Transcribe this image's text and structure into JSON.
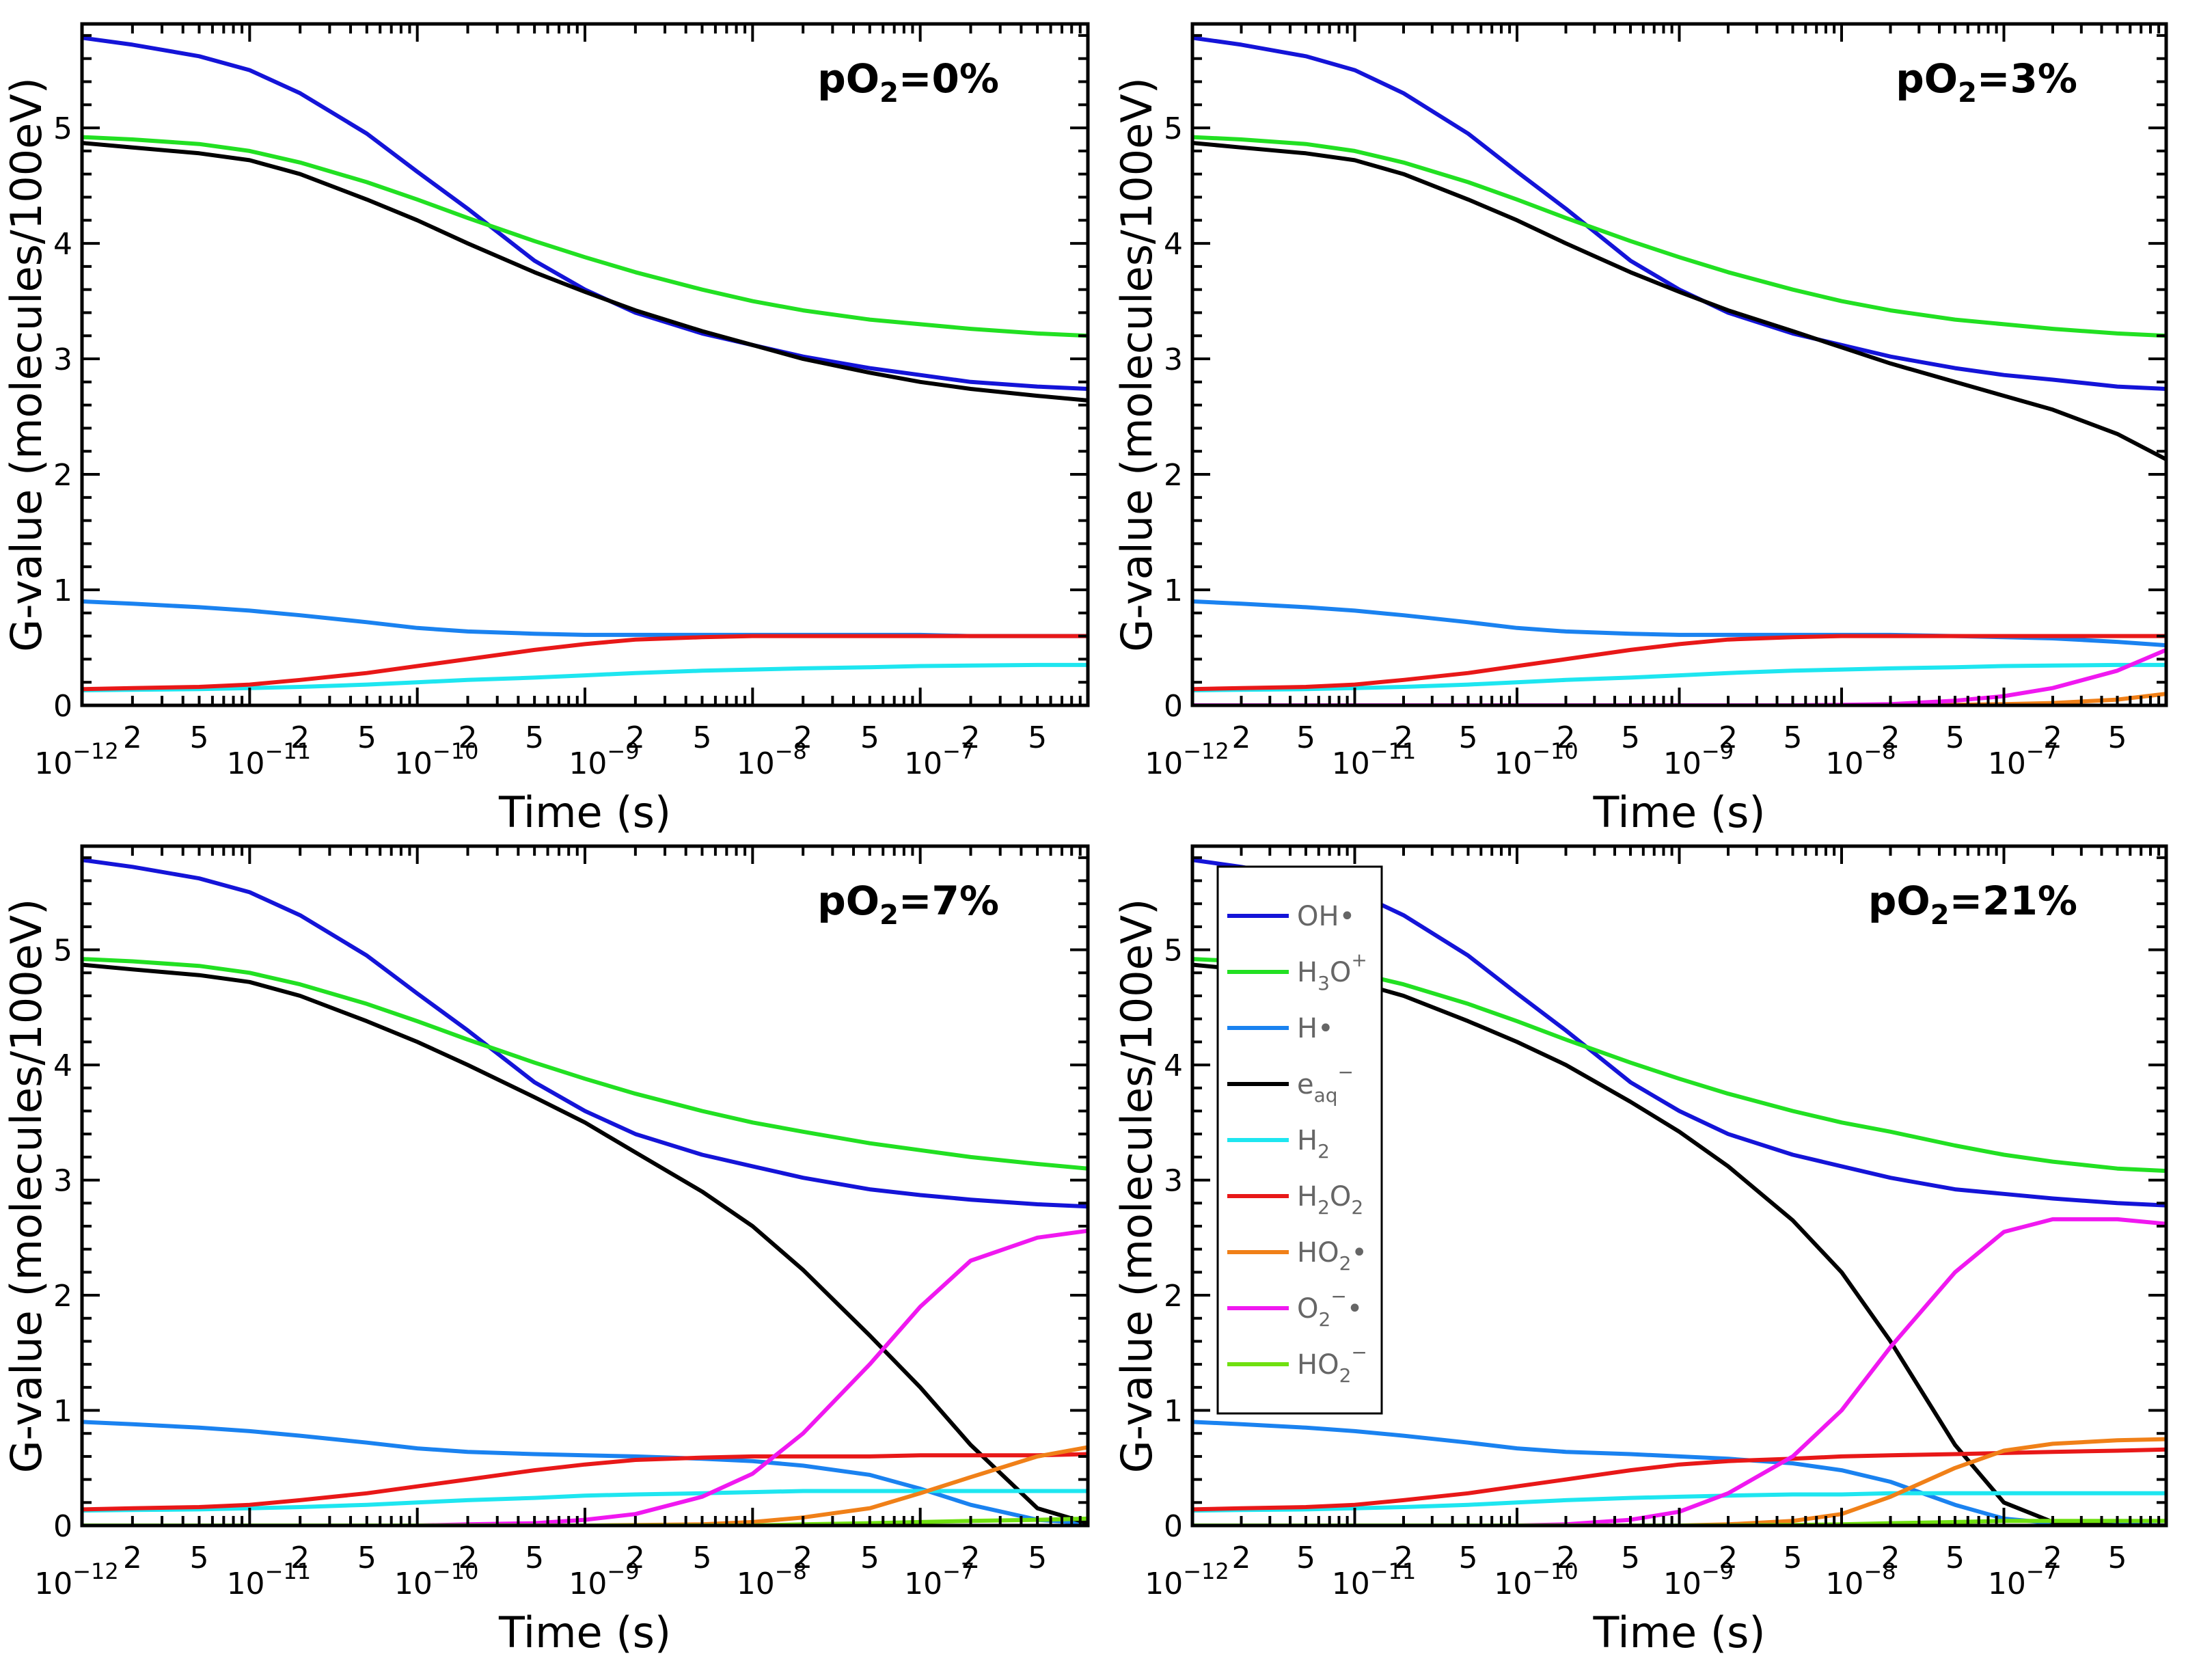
{
  "chart_data": [
    {
      "type": "line",
      "title_prefix": "pO",
      "title_sub": "2",
      "title_suffix": "=0%",
      "xlabel": "Time (s)",
      "ylabel": "G-value (molecules/100eV)",
      "xscale": "log",
      "xlim": [
        1e-12,
        1e-06
      ],
      "ylim": [
        0,
        5.9
      ],
      "yticks": [
        "0",
        "1",
        "2",
        "3",
        "4",
        "5"
      ],
      "x": [
        1e-12,
        2e-12,
        5e-12,
        1e-11,
        2e-11,
        5e-11,
        1e-10,
        2e-10,
        5e-10,
        1e-09,
        2e-09,
        5e-09,
        1e-08,
        2e-08,
        5e-08,
        1e-07,
        2e-07,
        5e-07,
        1e-06
      ],
      "series": [
        {
          "name": "OH",
          "color": "#1414d8",
          "values": [
            5.78,
            5.72,
            5.62,
            5.5,
            5.3,
            4.95,
            4.62,
            4.3,
            3.85,
            3.6,
            3.4,
            3.22,
            3.12,
            3.02,
            2.92,
            2.86,
            2.8,
            2.76,
            2.74
          ]
        },
        {
          "name": "H3O+",
          "color": "#22e022",
          "values": [
            4.92,
            4.9,
            4.86,
            4.8,
            4.7,
            4.53,
            4.38,
            4.22,
            4.02,
            3.88,
            3.75,
            3.6,
            3.5,
            3.42,
            3.34,
            3.3,
            3.26,
            3.22,
            3.2
          ]
        },
        {
          "name": "H",
          "color": "#1a82f0",
          "values": [
            0.9,
            0.88,
            0.85,
            0.82,
            0.78,
            0.72,
            0.67,
            0.64,
            0.62,
            0.61,
            0.61,
            0.61,
            0.61,
            0.61,
            0.61,
            0.61,
            0.6,
            0.6,
            0.6
          ]
        },
        {
          "name": "e-aq",
          "color": "#000000",
          "values": [
            4.87,
            4.83,
            4.78,
            4.72,
            4.6,
            4.38,
            4.2,
            4.0,
            3.75,
            3.58,
            3.42,
            3.24,
            3.12,
            3.0,
            2.88,
            2.8,
            2.74,
            2.68,
            2.64
          ]
        },
        {
          "name": "H2",
          "color": "#1ee6f0",
          "values": [
            0.13,
            0.135,
            0.14,
            0.15,
            0.16,
            0.18,
            0.2,
            0.22,
            0.24,
            0.26,
            0.28,
            0.3,
            0.31,
            0.32,
            0.33,
            0.34,
            0.345,
            0.35,
            0.35
          ]
        },
        {
          "name": "H2O2",
          "color": "#e81818",
          "values": [
            0.14,
            0.15,
            0.16,
            0.18,
            0.22,
            0.28,
            0.34,
            0.4,
            0.48,
            0.53,
            0.57,
            0.59,
            0.6,
            0.6,
            0.6,
            0.6,
            0.6,
            0.6,
            0.6
          ]
        }
      ]
    },
    {
      "type": "line",
      "title_prefix": "pO",
      "title_sub": "2",
      "title_suffix": "=3%",
      "xlabel": "Time (s)",
      "ylabel": "G-value (molecules/100eV)",
      "xscale": "log",
      "xlim": [
        1e-12,
        1e-06
      ],
      "ylim": [
        0,
        5.9
      ],
      "yticks": [
        "0",
        "1",
        "2",
        "3",
        "4",
        "5"
      ],
      "x": [
        1e-12,
        2e-12,
        5e-12,
        1e-11,
        2e-11,
        5e-11,
        1e-10,
        2e-10,
        5e-10,
        1e-09,
        2e-09,
        5e-09,
        1e-08,
        2e-08,
        5e-08,
        1e-07,
        2e-07,
        5e-07,
        1e-06
      ],
      "series": [
        {
          "name": "OH",
          "color": "#1414d8",
          "values": [
            5.78,
            5.72,
            5.62,
            5.5,
            5.3,
            4.95,
            4.62,
            4.3,
            3.85,
            3.6,
            3.4,
            3.22,
            3.12,
            3.02,
            2.92,
            2.86,
            2.82,
            2.76,
            2.74
          ]
        },
        {
          "name": "H3O+",
          "color": "#22e022",
          "values": [
            4.92,
            4.9,
            4.86,
            4.8,
            4.7,
            4.53,
            4.38,
            4.22,
            4.02,
            3.88,
            3.75,
            3.6,
            3.5,
            3.42,
            3.34,
            3.3,
            3.26,
            3.22,
            3.2
          ]
        },
        {
          "name": "H",
          "color": "#1a82f0",
          "values": [
            0.9,
            0.88,
            0.85,
            0.82,
            0.78,
            0.72,
            0.67,
            0.64,
            0.62,
            0.61,
            0.61,
            0.61,
            0.61,
            0.61,
            0.6,
            0.59,
            0.58,
            0.55,
            0.52
          ]
        },
        {
          "name": "e-aq",
          "color": "#000000",
          "values": [
            4.87,
            4.83,
            4.78,
            4.72,
            4.6,
            4.38,
            4.2,
            4.0,
            3.75,
            3.58,
            3.42,
            3.24,
            3.1,
            2.96,
            2.8,
            2.68,
            2.56,
            2.35,
            2.13
          ]
        },
        {
          "name": "H2",
          "color": "#1ee6f0",
          "values": [
            0.13,
            0.135,
            0.14,
            0.15,
            0.16,
            0.18,
            0.2,
            0.22,
            0.24,
            0.26,
            0.28,
            0.3,
            0.31,
            0.32,
            0.33,
            0.34,
            0.345,
            0.35,
            0.35
          ]
        },
        {
          "name": "H2O2",
          "color": "#e81818",
          "values": [
            0.14,
            0.15,
            0.16,
            0.18,
            0.22,
            0.28,
            0.34,
            0.4,
            0.48,
            0.53,
            0.57,
            0.59,
            0.6,
            0.6,
            0.6,
            0.6,
            0.6,
            0.6,
            0.6
          ]
        },
        {
          "name": "HO2",
          "color": "#f08018",
          "values": [
            0,
            0,
            0,
            0,
            0,
            0,
            0,
            0,
            0,
            0,
            0,
            0,
            0,
            0,
            0.005,
            0.01,
            0.02,
            0.05,
            0.1
          ]
        },
        {
          "name": "O2-",
          "color": "#f018f0",
          "values": [
            0,
            0,
            0,
            0,
            0,
            0,
            0,
            0,
            0,
            0,
            0,
            0,
            0.005,
            0.01,
            0.04,
            0.08,
            0.15,
            0.3,
            0.48
          ]
        }
      ]
    },
    {
      "type": "line",
      "title_prefix": "pO",
      "title_sub": "2",
      "title_suffix": "=7%",
      "xlabel": "Time (s)",
      "ylabel": "G-value (molecules/100eV)",
      "xscale": "log",
      "xlim": [
        1e-12,
        1e-06
      ],
      "ylim": [
        0,
        5.9
      ],
      "yticks": [
        "0",
        "1",
        "2",
        "3",
        "4",
        "5"
      ],
      "x": [
        1e-12,
        2e-12,
        5e-12,
        1e-11,
        2e-11,
        5e-11,
        1e-10,
        2e-10,
        5e-10,
        1e-09,
        2e-09,
        5e-09,
        1e-08,
        2e-08,
        5e-08,
        1e-07,
        2e-07,
        5e-07,
        1e-06
      ],
      "series": [
        {
          "name": "OH",
          "color": "#1414d8",
          "values": [
            5.78,
            5.72,
            5.62,
            5.5,
            5.3,
            4.95,
            4.62,
            4.3,
            3.85,
            3.6,
            3.4,
            3.22,
            3.12,
            3.02,
            2.92,
            2.87,
            2.83,
            2.79,
            2.77
          ]
        },
        {
          "name": "H3O+",
          "color": "#22e022",
          "values": [
            4.92,
            4.9,
            4.86,
            4.8,
            4.7,
            4.53,
            4.38,
            4.22,
            4.02,
            3.88,
            3.75,
            3.6,
            3.5,
            3.42,
            3.32,
            3.26,
            3.2,
            3.14,
            3.1
          ]
        },
        {
          "name": "H",
          "color": "#1a82f0",
          "values": [
            0.9,
            0.88,
            0.85,
            0.82,
            0.78,
            0.72,
            0.67,
            0.64,
            0.62,
            0.61,
            0.6,
            0.58,
            0.56,
            0.52,
            0.44,
            0.32,
            0.18,
            0.05,
            0.02
          ]
        },
        {
          "name": "e-aq",
          "color": "#000000",
          "values": [
            4.87,
            4.83,
            4.78,
            4.72,
            4.6,
            4.38,
            4.2,
            4.0,
            3.72,
            3.5,
            3.24,
            2.9,
            2.6,
            2.22,
            1.65,
            1.2,
            0.7,
            0.15,
            0.02
          ]
        },
        {
          "name": "H2",
          "color": "#1ee6f0",
          "values": [
            0.13,
            0.135,
            0.14,
            0.15,
            0.16,
            0.18,
            0.2,
            0.22,
            0.24,
            0.26,
            0.27,
            0.28,
            0.29,
            0.3,
            0.3,
            0.3,
            0.3,
            0.3,
            0.3
          ]
        },
        {
          "name": "H2O2",
          "color": "#e81818",
          "values": [
            0.14,
            0.15,
            0.16,
            0.18,
            0.22,
            0.28,
            0.34,
            0.4,
            0.48,
            0.53,
            0.57,
            0.59,
            0.6,
            0.6,
            0.6,
            0.61,
            0.61,
            0.61,
            0.62
          ]
        },
        {
          "name": "HO2",
          "color": "#f08018",
          "values": [
            0,
            0,
            0,
            0,
            0,
            0,
            0,
            0,
            0,
            0,
            0.005,
            0.01,
            0.03,
            0.07,
            0.15,
            0.28,
            0.42,
            0.6,
            0.68
          ]
        },
        {
          "name": "O2-",
          "color": "#f018f0",
          "values": [
            0,
            0,
            0,
            0,
            0,
            0,
            0,
            0.01,
            0.02,
            0.05,
            0.1,
            0.25,
            0.45,
            0.8,
            1.4,
            1.9,
            2.3,
            2.5,
            2.56
          ]
        },
        {
          "name": "HO2-",
          "color": "#70e010",
          "values": [
            0,
            0,
            0,
            0,
            0,
            0,
            0,
            0,
            0,
            0,
            0,
            0,
            0,
            0.01,
            0.02,
            0.03,
            0.04,
            0.05,
            0.06
          ]
        }
      ]
    },
    {
      "type": "line",
      "title_prefix": "pO",
      "title_sub": "2",
      "title_suffix": "=21%",
      "xlabel": "Time (s)",
      "ylabel": "G-value (molecules/100eV)",
      "xscale": "log",
      "xlim": [
        1e-12,
        1e-06
      ],
      "ylim": [
        0,
        5.9
      ],
      "yticks": [
        "0",
        "1",
        "2",
        "3",
        "4",
        "5"
      ],
      "x": [
        1e-12,
        2e-12,
        5e-12,
        1e-11,
        2e-11,
        5e-11,
        1e-10,
        2e-10,
        5e-10,
        1e-09,
        2e-09,
        5e-09,
        1e-08,
        2e-08,
        5e-08,
        1e-07,
        2e-07,
        5e-07,
        1e-06
      ],
      "series": [
        {
          "name": "OH",
          "color": "#1414d8",
          "values": [
            5.78,
            5.72,
            5.62,
            5.5,
            5.3,
            4.95,
            4.62,
            4.3,
            3.85,
            3.6,
            3.4,
            3.22,
            3.12,
            3.02,
            2.92,
            2.88,
            2.84,
            2.8,
            2.78
          ]
        },
        {
          "name": "H3O+",
          "color": "#22e022",
          "values": [
            4.92,
            4.9,
            4.86,
            4.8,
            4.7,
            4.53,
            4.38,
            4.22,
            4.02,
            3.88,
            3.75,
            3.6,
            3.5,
            3.42,
            3.3,
            3.22,
            3.16,
            3.1,
            3.08
          ]
        },
        {
          "name": "H",
          "color": "#1a82f0",
          "values": [
            0.9,
            0.88,
            0.85,
            0.82,
            0.78,
            0.72,
            0.67,
            0.64,
            0.62,
            0.6,
            0.58,
            0.54,
            0.48,
            0.38,
            0.18,
            0.06,
            0.02,
            0.01,
            0.0
          ]
        },
        {
          "name": "e-aq",
          "color": "#000000",
          "values": [
            4.87,
            4.83,
            4.78,
            4.72,
            4.6,
            4.38,
            4.2,
            4.0,
            3.68,
            3.42,
            3.12,
            2.65,
            2.2,
            1.6,
            0.7,
            0.2,
            0.03,
            0.0,
            0.0
          ]
        },
        {
          "name": "H2",
          "color": "#1ee6f0",
          "values": [
            0.13,
            0.135,
            0.14,
            0.15,
            0.16,
            0.18,
            0.2,
            0.22,
            0.24,
            0.25,
            0.26,
            0.27,
            0.27,
            0.28,
            0.28,
            0.28,
            0.28,
            0.28,
            0.28
          ]
        },
        {
          "name": "H2O2",
          "color": "#e81818",
          "values": [
            0.14,
            0.15,
            0.16,
            0.18,
            0.22,
            0.28,
            0.34,
            0.4,
            0.48,
            0.53,
            0.56,
            0.58,
            0.6,
            0.61,
            0.62,
            0.63,
            0.64,
            0.65,
            0.66
          ]
        },
        {
          "name": "HO2",
          "color": "#f08018",
          "values": [
            0,
            0,
            0,
            0,
            0,
            0,
            0,
            0,
            0,
            0,
            0.01,
            0.04,
            0.1,
            0.25,
            0.5,
            0.65,
            0.71,
            0.74,
            0.75
          ]
        },
        {
          "name": "O2-",
          "color": "#f018f0",
          "values": [
            0,
            0,
            0,
            0,
            0,
            0,
            0,
            0.01,
            0.05,
            0.12,
            0.28,
            0.6,
            1.0,
            1.55,
            2.2,
            2.55,
            2.66,
            2.66,
            2.62
          ]
        },
        {
          "name": "HO2-",
          "color": "#70e010",
          "values": [
            0,
            0,
            0,
            0,
            0,
            0,
            0,
            0,
            0,
            0,
            0,
            0.005,
            0.01,
            0.02,
            0.03,
            0.04,
            0.04,
            0.04,
            0.04
          ]
        }
      ]
    }
  ],
  "legend": {
    "items": [
      {
        "base": "OH",
        "sup": "",
        "sub": "",
        "tail": "•",
        "color": "#1414d8"
      },
      {
        "base": "H",
        "sub": "3",
        "mid": "O",
        "sup": "+",
        "tail": "",
        "color": "#22e022"
      },
      {
        "base": "H",
        "sup": "",
        "sub": "",
        "tail": "•",
        "color": "#1a82f0"
      },
      {
        "base": "e",
        "sup": "−",
        "sub": "aq",
        "tail": "",
        "color": "#000000"
      },
      {
        "base": "H",
        "sub": "2",
        "sup": "",
        "tail": "",
        "color": "#1ee6f0"
      },
      {
        "base": "H",
        "sub": "2",
        "mid": "O",
        "sub2": "2",
        "sup": "",
        "tail": "",
        "color": "#e81818"
      },
      {
        "base": "HO",
        "sub": "2",
        "sup": "",
        "tail": "•",
        "color": "#f08018"
      },
      {
        "base": "O",
        "sub": "2",
        "sup": "−",
        "tail": "•",
        "color": "#f018f0"
      },
      {
        "base": "HO",
        "sub": "2",
        "sup": "−",
        "tail": "",
        "color": "#70e010"
      }
    ]
  },
  "xaxis": {
    "decade_labels": [
      {
        "base": "10",
        "exp": "−12"
      },
      {
        "base": "10",
        "exp": "−11"
      },
      {
        "base": "10",
        "exp": "−10"
      },
      {
        "base": "10",
        "exp": "−9"
      },
      {
        "base": "10",
        "exp": "−8"
      },
      {
        "base": "10",
        "exp": "−7"
      }
    ],
    "minor_labels": [
      "2",
      "5"
    ]
  }
}
